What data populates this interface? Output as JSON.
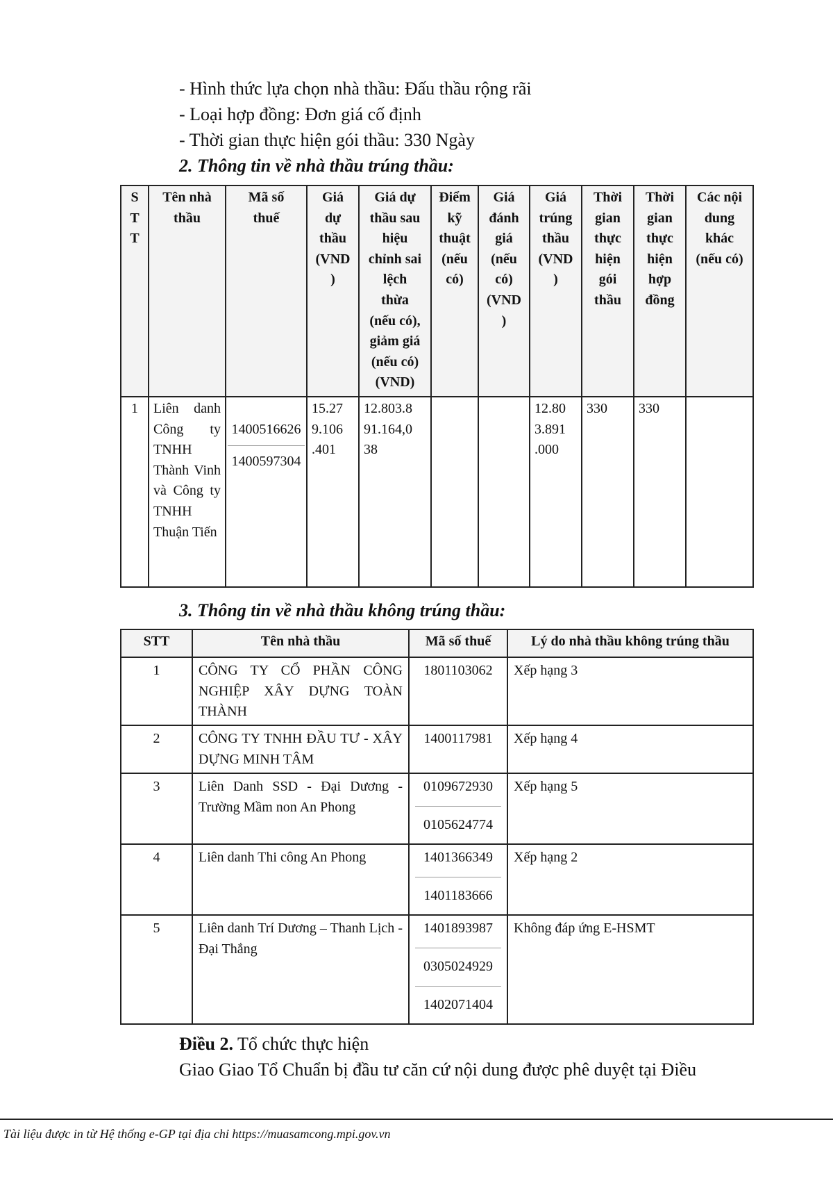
{
  "intro_lines": [
    "- Hình thức lựa chọn nhà thầu: Đấu thầu rộng rãi",
    "- Loại hợp đồng: Đơn giá cố định",
    "- Thời gian thực hiện gói thầu: 330 Ngày"
  ],
  "section2": {
    "heading": "2. Thông tin về nhà thầu trúng thầu:",
    "headers": [
      "S\nT\nT",
      "Tên nhà\nthầu",
      "Mã số\nthuế",
      "Giá\ndự\nthầu\n(VND\n)",
      "Giá dự\nthầu sau\nhiệu\nchỉnh sai\nlệch\nthừa\n(nếu có),\ngiảm giá\n(nếu có)\n(VND)",
      "Điểm\nkỹ\nthuật\n(nếu\ncó)",
      "Giá\nđánh\ngiá\n(nếu\ncó)\n(VND\n)",
      "Giá\ntrúng\nthầu\n(VND\n)",
      "Thời\ngian\nthực\nhiện\ngói\nthầu",
      "Thời\ngian\nthực\nhiện\nhợp\nđồng",
      "Các nội\ndung\nkhác\n(nếu có)"
    ],
    "rows": [
      {
        "stt": "1",
        "name": "Liên danh Công ty TNHH Thành Vinh và Công ty TNHH Thuận Tiến",
        "tax_codes": [
          "1400516626",
          "1400597304"
        ],
        "bid_price": "15.27\n9.106\n.401",
        "adjusted_price": "12.803.8\n91.164,0\n38",
        "tech_score": "",
        "eval_price": "",
        "winning_price": "12.80\n3.891\n.000",
        "package_duration": "330",
        "contract_duration": "330",
        "other": ""
      }
    ]
  },
  "section3": {
    "heading": "3. Thông tin về nhà thầu không trúng thầu:",
    "headers": [
      "STT",
      "Tên nhà thầu",
      "Mã số thuế",
      "Lý do nhà thầu không trúng thầu"
    ],
    "rows": [
      {
        "stt": "1",
        "name": "CÔNG TY CỔ PHẦN CÔNG NGHIỆP XÂY DỰNG TOÀN THÀNH",
        "tax_codes": [
          "1801103062"
        ],
        "reason": "Xếp hạng 3"
      },
      {
        "stt": "2",
        "name": "CÔNG TY TNHH ĐẦU TƯ - XÂY DỰNG MINH TÂM",
        "tax_codes": [
          "1400117981"
        ],
        "reason": "Xếp hạng 4"
      },
      {
        "stt": "3",
        "name": "Liên Danh SSD - Đại Dương - Trường Mầm non An Phong",
        "tax_codes": [
          "0109672930",
          "0105624774"
        ],
        "reason": "Xếp hạng 5"
      },
      {
        "stt": "4",
        "name": "Liên danh Thi công An Phong",
        "tax_codes": [
          "1401366349",
          "1401183666"
        ],
        "reason": "Xếp hạng 2"
      },
      {
        "stt": "5",
        "name": "Liên danh Trí Dương – Thanh Lịch - Đại Thắng",
        "tax_codes": [
          "1401893987",
          "0305024929",
          "1402071404"
        ],
        "reason": "Không đáp ứng E-HSMT"
      }
    ]
  },
  "article2": {
    "label": "Điều 2.",
    "title": " Tổ chức thực hiện",
    "body": "Giao Giao Tổ Chuẩn bị đầu tư căn cứ nội dung được phê duyệt tại Điều"
  },
  "footer": "Tài liệu được in từ Hệ thống e-GP tại địa chỉ https://muasamcong.mpi.gov.vn"
}
